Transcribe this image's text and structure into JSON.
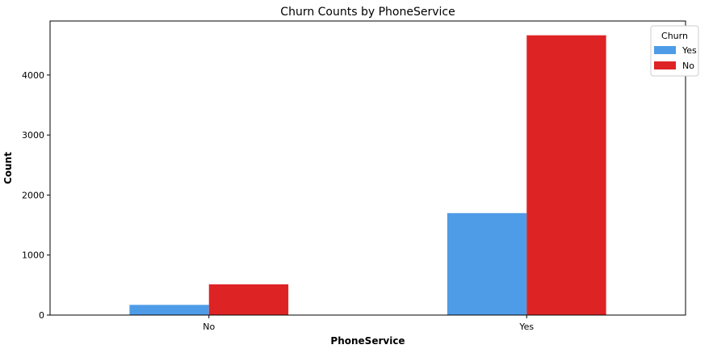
{
  "chart_data": {
    "type": "bar",
    "title": "Churn Counts by PhoneService",
    "xlabel": "PhoneService",
    "ylabel": "Count",
    "categories": [
      "No",
      "Yes"
    ],
    "series": [
      {
        "name": "Yes",
        "values": [
          170,
          1699
        ],
        "color": "#4e9ce8"
      },
      {
        "name": "No",
        "values": [
          512,
          4662
        ],
        "color": "#de2325"
      }
    ],
    "ylim": [
      0,
      4900
    ],
    "yticks": [
      0,
      1000,
      2000,
      3000,
      4000
    ],
    "legend": {
      "title": "Churn",
      "position": "top-right"
    },
    "grid": false
  }
}
